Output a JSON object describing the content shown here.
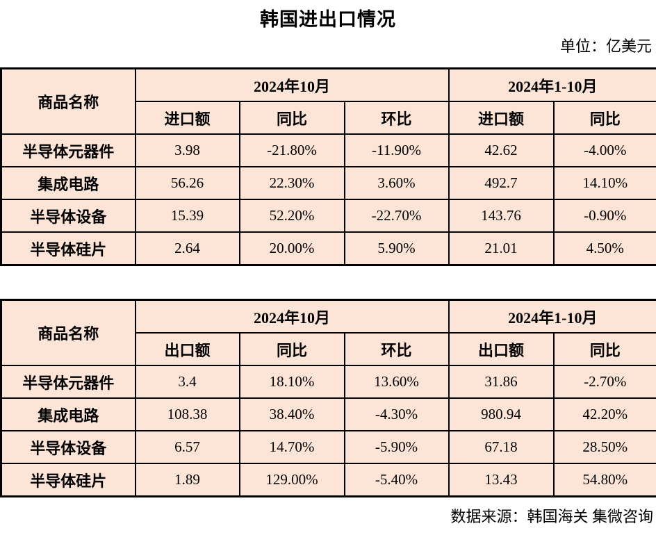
{
  "page": {
    "title": "韩国进出口情况",
    "unit_note": "单位：亿美元",
    "source_note": "数据来源：韩国海关 集微咨询"
  },
  "colors": {
    "cell_bg": "#fce4d6",
    "border": "#000000",
    "page_bg": "#ffffff",
    "text": "#000000"
  },
  "tables": [
    {
      "name": "imports",
      "corner_header": "商品名称",
      "group_headers": [
        "2024年10月",
        "2024年1-10月"
      ],
      "sub_headers": [
        "进口额",
        "同比",
        "环比",
        "进口额",
        "同比"
      ],
      "rows": [
        {
          "label": "半导体元器件",
          "values": [
            "3.98",
            "-21.80%",
            "-11.90%",
            "42.62",
            "-4.00%"
          ]
        },
        {
          "label": "集成电路",
          "values": [
            "56.26",
            "22.30%",
            "3.60%",
            "492.7",
            "14.10%"
          ]
        },
        {
          "label": "半导体设备",
          "values": [
            "15.39",
            "52.20%",
            "-22.70%",
            "143.76",
            "-0.90%"
          ]
        },
        {
          "label": "半导体硅片",
          "values": [
            "2.64",
            "20.00%",
            "5.90%",
            "21.01",
            "4.50%"
          ]
        }
      ]
    },
    {
      "name": "exports",
      "corner_header": "商品名称",
      "group_headers": [
        "2024年10月",
        "2024年1-10月"
      ],
      "sub_headers": [
        "出口额",
        "同比",
        "环比",
        "出口额",
        "同比"
      ],
      "rows": [
        {
          "label": "半导体元器件",
          "values": [
            "3.4",
            "18.10%",
            "13.60%",
            "31.86",
            "-2.70%"
          ]
        },
        {
          "label": "集成电路",
          "values": [
            "108.38",
            "38.40%",
            "-4.30%",
            "980.94",
            "42.20%"
          ]
        },
        {
          "label": "半导体设备",
          "values": [
            "6.57",
            "14.70%",
            "-5.90%",
            "67.18",
            "28.50%"
          ]
        },
        {
          "label": "半导体硅片",
          "values": [
            "1.89",
            "129.00%",
            "-5.40%",
            "13.43",
            "54.80%"
          ]
        }
      ]
    }
  ]
}
